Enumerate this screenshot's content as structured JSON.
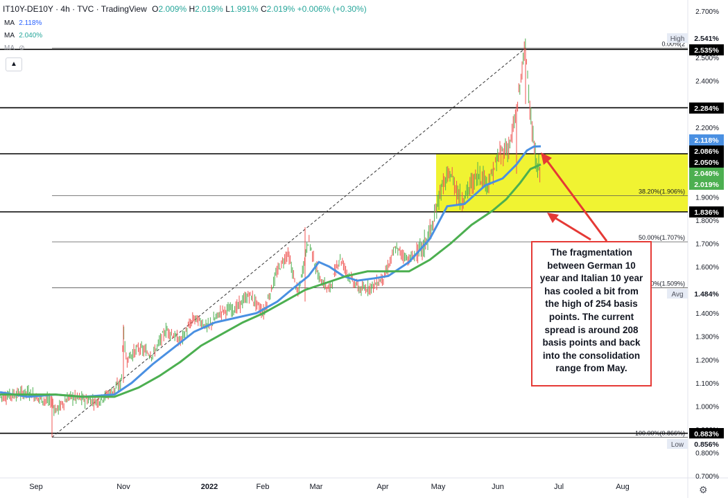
{
  "header": {
    "symbol": "IT10Y-DE10Y",
    "timeframe": "4h",
    "source": "TVC",
    "platform": "TradingView",
    "ohlc": {
      "o_label": "O",
      "o": "2.009%",
      "h_label": "H",
      "h": "2.019%",
      "l_label": "L",
      "l": "1.991%",
      "c_label": "C",
      "c": "2.019%",
      "change": "+0.006% (+0.30%)"
    }
  },
  "indicators": [
    {
      "label": "MA",
      "value": "2.118%",
      "color": "#2962ff"
    },
    {
      "label": "MA",
      "value": "2.040%",
      "color": "#26a69a"
    },
    {
      "label": "MA",
      "value": "",
      "color": "#9598a1"
    }
  ],
  "collapse_icon": "chevron-up-icon",
  "settings_icon": "gear-icon",
  "annotation": "The fragmentation between German 10 year and Italian 10 year has cooled a bit from the high of 254 basis points. The current spread is around 208 basis points and back into the consolidation range from May.",
  "colors": {
    "ma_fast": "#4a90e2",
    "ma_slow": "#4caf50",
    "candle_up": "#4caf50",
    "candle_down": "#ef5350",
    "consolidation_box": "#eef21c",
    "arrow": "#e53935",
    "price_tag": "#000000"
  },
  "chart_data": {
    "type": "line",
    "ylim": [
      0.7,
      2.7
    ],
    "ytick_values": [
      0.7,
      0.8,
      0.9,
      1.0,
      1.1,
      1.2,
      1.3,
      1.4,
      1.5,
      1.6,
      1.7,
      1.8,
      1.9,
      2.0,
      2.1,
      2.2,
      2.3,
      2.4,
      2.5,
      2.6,
      2.7
    ],
    "ytick_labels": [
      "0.700%",
      "0.800%",
      "0.900%",
      "1.000%",
      "1.100%",
      "1.200%",
      "1.300%",
      "1.400%",
      "",
      "1.600%",
      "1.700%",
      "1.800%",
      "1.900%",
      "",
      "",
      "2.200%",
      "",
      "2.400%",
      "2.500%",
      "",
      "2.700%"
    ],
    "xtick_labels": [
      "Sep",
      "Nov",
      "2022",
      "Feb",
      "Mar",
      "Apr",
      "May",
      "Jun",
      "Jul",
      "Aug"
    ],
    "price_path": [
      [
        0,
        1.04
      ],
      [
        20,
        1.05
      ],
      [
        40,
        1.06
      ],
      [
        60,
        1.03
      ],
      [
        75,
        1.02
      ],
      [
        80,
        0.98
      ],
      [
        100,
        1.04
      ],
      [
        120,
        1.03
      ],
      [
        140,
        1.02
      ],
      [
        160,
        1.06
      ],
      [
        175,
        1.1
      ],
      [
        178,
        1.33
      ],
      [
        182,
        1.2
      ],
      [
        200,
        1.25
      ],
      [
        220,
        1.22
      ],
      [
        240,
        1.33
      ],
      [
        260,
        1.28
      ],
      [
        280,
        1.38
      ],
      [
        300,
        1.34
      ],
      [
        320,
        1.41
      ],
      [
        340,
        1.42
      ],
      [
        360,
        1.48
      ],
      [
        380,
        1.4
      ],
      [
        400,
        1.58
      ],
      [
        415,
        1.66
      ],
      [
        430,
        1.48
      ],
      [
        445,
        1.72
      ],
      [
        460,
        1.55
      ],
      [
        475,
        1.5
      ],
      [
        490,
        1.64
      ],
      [
        505,
        1.55
      ],
      [
        520,
        1.5
      ],
      [
        540,
        1.52
      ],
      [
        555,
        1.56
      ],
      [
        570,
        1.68
      ],
      [
        590,
        1.63
      ],
      [
        610,
        1.68
      ],
      [
        625,
        1.78
      ],
      [
        635,
        1.93
      ],
      [
        650,
        2.0
      ],
      [
        665,
        1.88
      ],
      [
        675,
        1.93
      ],
      [
        690,
        2.0
      ],
      [
        705,
        1.96
      ],
      [
        720,
        2.08
      ],
      [
        735,
        2.12
      ],
      [
        745,
        2.26
      ],
      [
        755,
        2.5
      ],
      [
        758,
        2.54
      ],
      [
        762,
        2.4
      ],
      [
        766,
        2.22
      ],
      [
        770,
        2.11
      ],
      [
        775,
        2.02
      ],
      [
        780,
        2.019
      ]
    ],
    "series": [
      {
        "name": "",
        "points": [
          [
            0,
            1.06
          ],
          [
            40,
            1.04
          ],
          [
            80,
            1.05
          ],
          [
            120,
            1.04
          ],
          [
            165,
            1.05
          ],
          [
            190,
            1.1
          ],
          [
            220,
            1.18
          ],
          [
            250,
            1.25
          ],
          [
            280,
            1.32
          ],
          [
            310,
            1.36
          ],
          [
            340,
            1.38
          ],
          [
            370,
            1.4
          ],
          [
            400,
            1.45
          ],
          [
            420,
            1.5
          ],
          [
            445,
            1.56
          ],
          [
            460,
            1.62
          ],
          [
            475,
            1.6
          ],
          [
            495,
            1.56
          ],
          [
            515,
            1.54
          ],
          [
            540,
            1.55
          ],
          [
            560,
            1.56
          ],
          [
            590,
            1.62
          ],
          [
            620,
            1.72
          ],
          [
            645,
            1.86
          ],
          [
            670,
            1.87
          ],
          [
            700,
            1.95
          ],
          [
            725,
            1.98
          ],
          [
            745,
            2.04
          ],
          [
            760,
            2.1
          ],
          [
            770,
            2.117
          ],
          [
            780,
            2.118
          ]
        ]
      },
      {
        "name": "",
        "points": [
          [
            0,
            1.05
          ],
          [
            40,
            1.05
          ],
          [
            80,
            1.05
          ],
          [
            120,
            1.04
          ],
          [
            165,
            1.04
          ],
          [
            200,
            1.08
          ],
          [
            230,
            1.13
          ],
          [
            260,
            1.19
          ],
          [
            290,
            1.26
          ],
          [
            320,
            1.31
          ],
          [
            350,
            1.36
          ],
          [
            380,
            1.4
          ],
          [
            410,
            1.45
          ],
          [
            440,
            1.5
          ],
          [
            470,
            1.53
          ],
          [
            500,
            1.56
          ],
          [
            530,
            1.58
          ],
          [
            560,
            1.58
          ],
          [
            590,
            1.58
          ],
          [
            620,
            1.63
          ],
          [
            650,
            1.7
          ],
          [
            680,
            1.78
          ],
          [
            710,
            1.84
          ],
          [
            730,
            1.89
          ],
          [
            750,
            1.96
          ],
          [
            765,
            2.02
          ],
          [
            780,
            2.04
          ]
        ]
      }
    ],
    "fib_levels": [
      {
        "label": "0.00%(2",
        "value": 2.541
      },
      {
        "label": "38.20%(1.906%)",
        "value": 1.906
      },
      {
        "label": "50.00%(1.707%)",
        "value": 1.707
      },
      {
        "label": "0%(1.509%)",
        "value": 1.509
      },
      {
        "label": "100.00%(0.866%)",
        "value": 0.866
      }
    ],
    "horizontal_levels": [
      2.535,
      2.284,
      2.086,
      1.836,
      0.883
    ],
    "consolidation_range": {
      "from": 1.836,
      "to": 2.086,
      "start_label": "May"
    },
    "price_tags": [
      {
        "text": "2.541%",
        "value": 2.541,
        "bg": "#ffffff",
        "fg": "#131722",
        "side": "High"
      },
      {
        "text": "2.535%",
        "value": 2.535,
        "bg": "#000000",
        "fg": "#ffffff"
      },
      {
        "text": "2.284%",
        "value": 2.284,
        "bg": "#000000",
        "fg": "#ffffff"
      },
      {
        "text": "2.118%",
        "value": 2.118,
        "bg": "#4a90e2",
        "fg": "#ffffff"
      },
      {
        "text": "2.086%",
        "value": 2.086,
        "bg": "#000000",
        "fg": "#ffffff"
      },
      {
        "text": "2.050%",
        "value": 2.05,
        "bg": "#000000",
        "fg": "#ffffff"
      },
      {
        "text": "2.040%",
        "value": 2.04,
        "bg": "#4caf50",
        "fg": "#ffffff"
      },
      {
        "text": "2.019%",
        "value": 2.019,
        "bg": "#4caf50",
        "fg": "#ffffff"
      },
      {
        "text": "1.836%",
        "value": 1.836,
        "bg": "#000000",
        "fg": "#ffffff"
      },
      {
        "text": "1.484%",
        "value": 1.484,
        "bg": "#ffffff",
        "fg": "#131722",
        "side": "Avg"
      },
      {
        "text": "0.883%",
        "value": 0.883,
        "bg": "#000000",
        "fg": "#ffffff"
      },
      {
        "text": "0.856%",
        "value": 0.856,
        "bg": "#ffffff",
        "fg": "#131722",
        "side": "Low"
      }
    ]
  }
}
